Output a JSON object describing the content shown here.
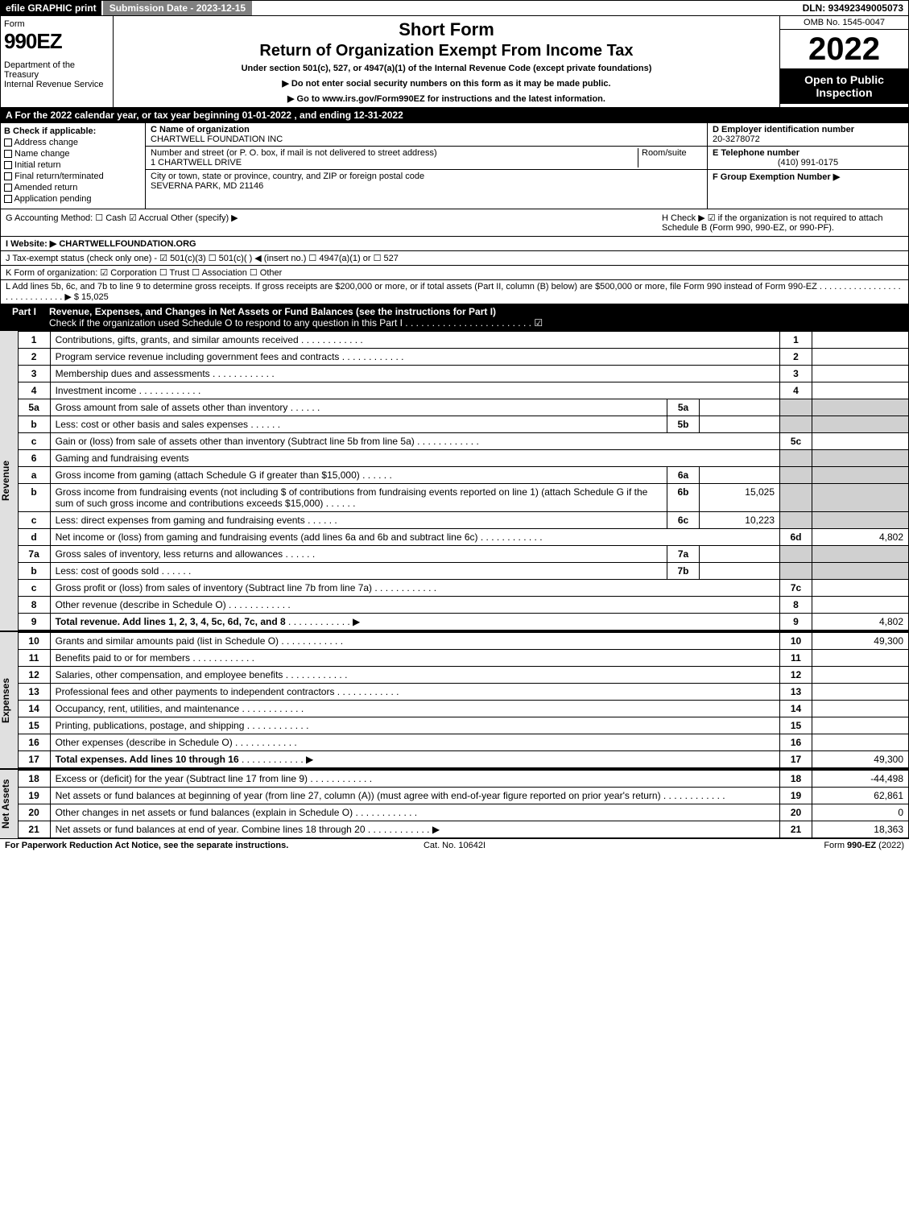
{
  "top": {
    "efile": "efile GRAPHIC print",
    "submission": "Submission Date - 2023-12-15",
    "dln": "DLN: 93492349005073"
  },
  "header": {
    "form_label": "Form",
    "form_number": "990EZ",
    "dept": "Department of the Treasury\nInternal Revenue Service",
    "title1": "Short Form",
    "title2": "Return of Organization Exempt From Income Tax",
    "subtitle": "Under section 501(c), 527, or 4947(a)(1) of the Internal Revenue Code (except private foundations)",
    "instr1": "▶ Do not enter social security numbers on this form as it may be made public.",
    "instr2": "▶ Go to www.irs.gov/Form990EZ for instructions and the latest information.",
    "omb": "OMB No. 1545-0047",
    "year": "2022",
    "open": "Open to Public Inspection"
  },
  "lineA": "A  For the 2022 calendar year, or tax year beginning 01-01-2022 , and ending 12-31-2022",
  "B": {
    "label": "B  Check if applicable:",
    "items": [
      "Address change",
      "Name change",
      "Initial return",
      "Final return/terminated",
      "Amended return",
      "Application pending"
    ]
  },
  "C": {
    "name_label": "C Name of organization",
    "name": "CHARTWELL FOUNDATION INC",
    "addr_label": "Number and street (or P. O. box, if mail is not delivered to street address)",
    "room_label": "Room/suite",
    "addr": "1 CHARTWELL DRIVE",
    "city_label": "City or town, state or province, country, and ZIP or foreign postal code",
    "city": "SEVERNA PARK, MD  21146"
  },
  "D": {
    "label": "D Employer identification number",
    "value": "20-3278072"
  },
  "E": {
    "label": "E Telephone number",
    "value": "(410) 991-0175"
  },
  "F": {
    "label": "F Group Exemption Number  ▶"
  },
  "G": "G Accounting Method:   ☐ Cash  ☑ Accrual  Other (specify) ▶",
  "H": "H   Check ▶ ☑ if the organization is not required to attach Schedule B (Form 990, 990-EZ, or 990-PF).",
  "I": "I Website: ▶ CHARTWELLFOUNDATION.ORG",
  "J": "J Tax-exempt status (check only one) - ☑ 501(c)(3) ☐ 501(c)(  ) ◀ (insert no.) ☐ 4947(a)(1) or ☐ 527",
  "K": "K Form of organization:  ☑ Corporation  ☐ Trust  ☐ Association  ☐ Other",
  "L": "L Add lines 5b, 6c, and 7b to line 9 to determine gross receipts. If gross receipts are $200,000 or more, or if total assets (Part II, column (B) below) are $500,000 or more, file Form 990 instead of Form 990-EZ . . . . . . . . . . . . . . . . . . . . . . . . . . . . . ▶ $ 15,025",
  "partI": {
    "label": "Part I",
    "title": "Revenue, Expenses, and Changes in Net Assets or Fund Balances (see the instructions for Part I)",
    "check": "Check if the organization used Schedule O to respond to any question in this Part I . . . . . . . . . . . . . . . . . . . . . . . . ☑"
  },
  "sections": {
    "revenue": "Revenue",
    "expenses": "Expenses",
    "netassets": "Net Assets"
  },
  "lines": [
    {
      "n": "1",
      "d": "Contributions, gifts, grants, and similar amounts received",
      "ln": "1",
      "amt": ""
    },
    {
      "n": "2",
      "d": "Program service revenue including government fees and contracts",
      "ln": "2",
      "amt": ""
    },
    {
      "n": "3",
      "d": "Membership dues and assessments",
      "ln": "3",
      "amt": ""
    },
    {
      "n": "4",
      "d": "Investment income",
      "ln": "4",
      "amt": ""
    },
    {
      "n": "5a",
      "d": "Gross amount from sale of assets other than inventory",
      "sub": "5a",
      "sv": ""
    },
    {
      "n": "b",
      "d": "Less: cost or other basis and sales expenses",
      "sub": "5b",
      "sv": ""
    },
    {
      "n": "c",
      "d": "Gain or (loss) from sale of assets other than inventory (Subtract line 5b from line 5a)",
      "ln": "5c",
      "amt": ""
    },
    {
      "n": "6",
      "d": "Gaming and fundraising events"
    },
    {
      "n": "a",
      "d": "Gross income from gaming (attach Schedule G if greater than $15,000)",
      "sub": "6a",
      "sv": ""
    },
    {
      "n": "b",
      "d": "Gross income from fundraising events (not including $                of contributions from fundraising events reported on line 1) (attach Schedule G if the sum of such gross income and contributions exceeds $15,000)",
      "sub": "6b",
      "sv": "15,025"
    },
    {
      "n": "c",
      "d": "Less: direct expenses from gaming and fundraising events",
      "sub": "6c",
      "sv": "10,223"
    },
    {
      "n": "d",
      "d": "Net income or (loss) from gaming and fundraising events (add lines 6a and 6b and subtract line 6c)",
      "ln": "6d",
      "amt": "4,802"
    },
    {
      "n": "7a",
      "d": "Gross sales of inventory, less returns and allowances",
      "sub": "7a",
      "sv": ""
    },
    {
      "n": "b",
      "d": "Less: cost of goods sold",
      "sub": "7b",
      "sv": ""
    },
    {
      "n": "c",
      "d": "Gross profit or (loss) from sales of inventory (Subtract line 7b from line 7a)",
      "ln": "7c",
      "amt": ""
    },
    {
      "n": "8",
      "d": "Other revenue (describe in Schedule O)",
      "ln": "8",
      "amt": ""
    },
    {
      "n": "9",
      "d": "Total revenue. Add lines 1, 2, 3, 4, 5c, 6d, 7c, and 8",
      "ln": "9",
      "amt": "4,802",
      "bold": true,
      "arrow": true
    }
  ],
  "exp_lines": [
    {
      "n": "10",
      "d": "Grants and similar amounts paid (list in Schedule O)",
      "ln": "10",
      "amt": "49,300"
    },
    {
      "n": "11",
      "d": "Benefits paid to or for members",
      "ln": "11",
      "amt": ""
    },
    {
      "n": "12",
      "d": "Salaries, other compensation, and employee benefits",
      "ln": "12",
      "amt": ""
    },
    {
      "n": "13",
      "d": "Professional fees and other payments to independent contractors",
      "ln": "13",
      "amt": ""
    },
    {
      "n": "14",
      "d": "Occupancy, rent, utilities, and maintenance",
      "ln": "14",
      "amt": ""
    },
    {
      "n": "15",
      "d": "Printing, publications, postage, and shipping",
      "ln": "15",
      "amt": ""
    },
    {
      "n": "16",
      "d": "Other expenses (describe in Schedule O)",
      "ln": "16",
      "amt": ""
    },
    {
      "n": "17",
      "d": "Total expenses. Add lines 10 through 16",
      "ln": "17",
      "amt": "49,300",
      "bold": true,
      "arrow": true
    }
  ],
  "net_lines": [
    {
      "n": "18",
      "d": "Excess or (deficit) for the year (Subtract line 17 from line 9)",
      "ln": "18",
      "amt": "-44,498"
    },
    {
      "n": "19",
      "d": "Net assets or fund balances at beginning of year (from line 27, column (A)) (must agree with end-of-year figure reported on prior year's return)",
      "ln": "19",
      "amt": "62,861"
    },
    {
      "n": "20",
      "d": "Other changes in net assets or fund balances (explain in Schedule O)",
      "ln": "20",
      "amt": "0"
    },
    {
      "n": "21",
      "d": "Net assets or fund balances at end of year. Combine lines 18 through 20",
      "ln": "21",
      "amt": "18,363",
      "arrow": true
    }
  ],
  "footer": {
    "left": "For Paperwork Reduction Act Notice, see the separate instructions.",
    "center": "Cat. No. 10642I",
    "right": "Form 990-EZ (2022)"
  }
}
